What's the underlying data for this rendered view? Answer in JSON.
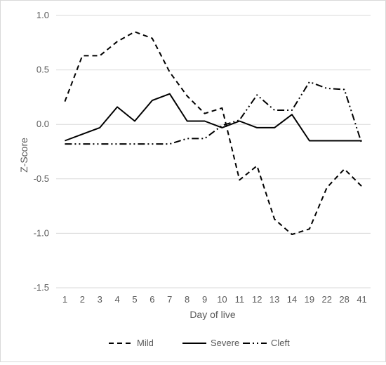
{
  "chart_data": {
    "type": "line",
    "categories": [
      "1",
      "2",
      "3",
      "4",
      "5",
      "6",
      "7",
      "8",
      "9",
      "10",
      "11",
      "12",
      "13",
      "14",
      "19",
      "22",
      "28",
      "41"
    ],
    "xlabel": "Day of live",
    "ylabel": "Z-Score",
    "ylim": [
      -1.5,
      1.0
    ],
    "yticks": [
      "1.0",
      "0.5",
      "0.0",
      "-0.5",
      "-1.0",
      "-1.5"
    ],
    "ytick_values": [
      1.0,
      0.5,
      0.0,
      -0.5,
      -1.0,
      -1.5
    ],
    "grid": "horizontal",
    "legend_position": "bottom",
    "series": [
      {
        "name": "Mild",
        "dash": "dashed",
        "color": "#000000",
        "values": [
          0.21,
          0.63,
          0.63,
          0.76,
          0.85,
          0.79,
          0.48,
          0.26,
          0.1,
          0.15,
          -0.51,
          -0.38,
          -0.87,
          -1.01,
          -0.96,
          -0.58,
          -0.41,
          -0.57
        ]
      },
      {
        "name": "Severe",
        "dash": "solid",
        "color": "#000000",
        "values": [
          -0.15,
          -0.09,
          -0.03,
          0.16,
          0.03,
          0.22,
          0.28,
          0.03,
          0.03,
          -0.03,
          0.03,
          -0.03,
          -0.03,
          0.09,
          -0.15,
          -0.15,
          -0.15,
          -0.15
        ]
      },
      {
        "name": "Cleft",
        "dash": "dashdotdot",
        "color": "#000000",
        "values": [
          -0.18,
          -0.18,
          -0.18,
          -0.18,
          -0.18,
          -0.18,
          -0.18,
          -0.13,
          -0.13,
          -0.01,
          0.04,
          0.27,
          0.13,
          0.13,
          0.39,
          0.33,
          0.32,
          -0.18
        ]
      }
    ]
  }
}
